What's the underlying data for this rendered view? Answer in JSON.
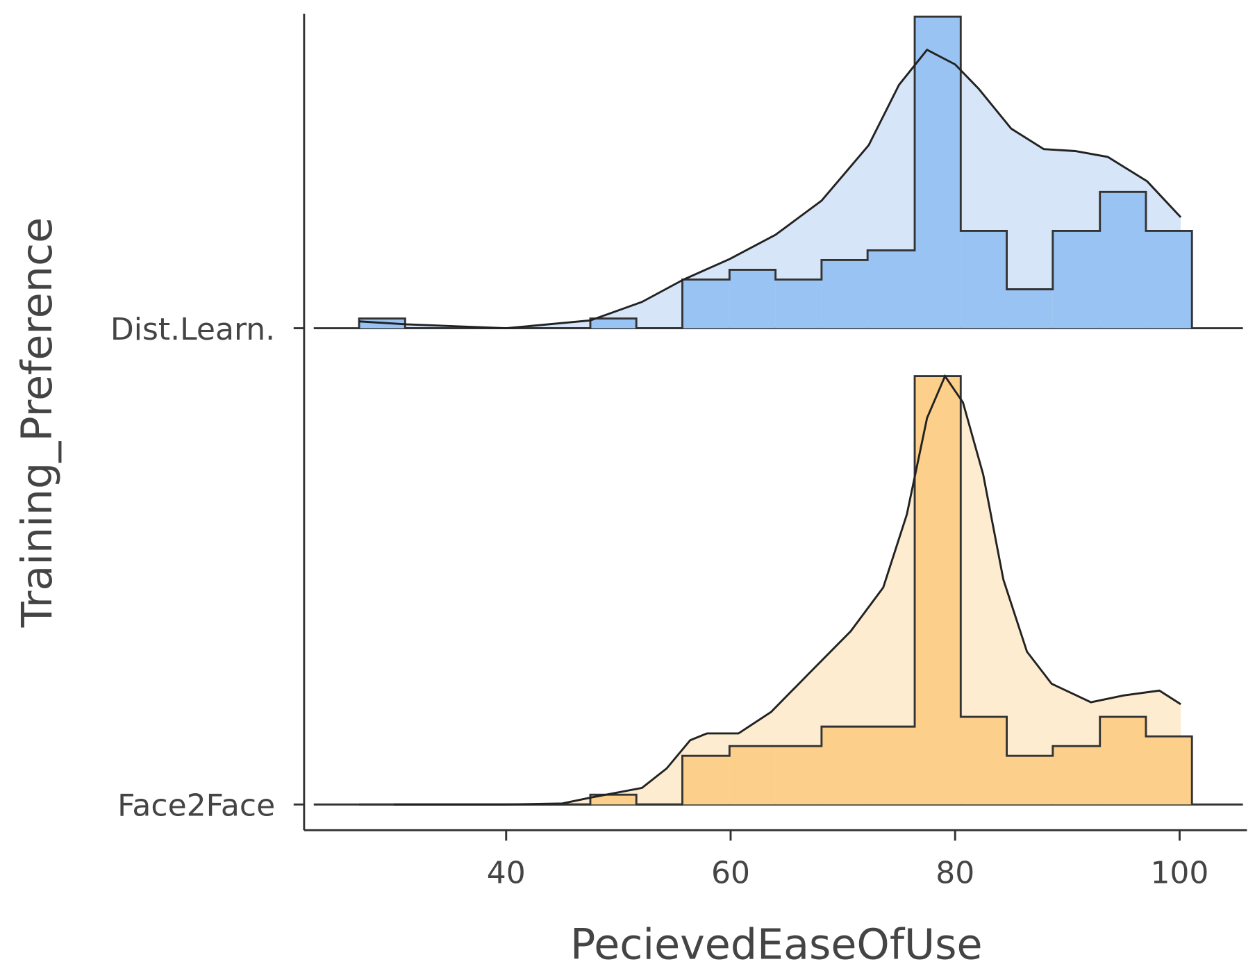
{
  "chart_data": {
    "type": "ridgeline",
    "x_label": "PecievedEaseOfUse",
    "y_label": "Training_Preference",
    "categories": [
      "Dist.Learn.",
      "Face2Face"
    ],
    "xlim": [
      22,
      106
    ],
    "xticks": [
      40,
      60,
      80,
      100
    ],
    "bins": [
      26.9,
      31.0,
      35.1,
      39.3,
      43.4,
      47.5,
      51.6,
      55.7,
      59.9,
      64.0,
      68.1,
      72.2,
      76.4,
      80.5,
      84.6,
      88.7,
      92.9,
      97.0,
      101.1
    ],
    "series": [
      {
        "name": "Dist.Learn.",
        "color": "#99c3f2",
        "density_color": "#d6e6f8",
        "counts": [
          1,
          0,
          0,
          0,
          0,
          1,
          0,
          5,
          6,
          5,
          7,
          8,
          32,
          10,
          4,
          10,
          14,
          10
        ],
        "density_x": [
          26.9,
          31.1,
          40,
          47.5,
          52.1,
          55.8,
          59.9,
          64,
          68.1,
          72.3,
          75,
          77.5,
          80,
          82.1,
          85,
          87.9,
          90.7,
          93.6,
          97.1,
          100.1
        ],
        "density": [
          0.7,
          0.4,
          0,
          0.8,
          2.7,
          5.0,
          7.1,
          9.6,
          13.1,
          18.8,
          25,
          28.6,
          27.1,
          24.6,
          20.5,
          18.4,
          18.2,
          17.6,
          15.1,
          11.4
        ]
      },
      {
        "name": "Face2Face",
        "color": "#fccf8a",
        "density_color": "#fdecd0",
        "counts": [
          0,
          0,
          0,
          0,
          0,
          1,
          0,
          5,
          6,
          6,
          8,
          8,
          44,
          9,
          5,
          6,
          9,
          7
        ],
        "density_x": [
          30,
          40,
          45,
          47.5,
          52.1,
          54.3,
          56.4,
          57.9,
          60.7,
          63.6,
          67.1,
          70.7,
          73.6,
          75.7,
          77.5,
          79.1,
          80.7,
          82.5,
          84.3,
          86.4,
          88.6,
          92.1,
          95,
          98.2,
          100.1
        ],
        "density": [
          0,
          0,
          0.1,
          0.7,
          1.7,
          3.7,
          6.6,
          7.3,
          7.3,
          9.5,
          13.6,
          17.8,
          22.3,
          29.8,
          39.7,
          44,
          41.3,
          33.9,
          23.1,
          15.7,
          12.4,
          10.5,
          11.2,
          11.7,
          10.3
        ]
      }
    ]
  }
}
